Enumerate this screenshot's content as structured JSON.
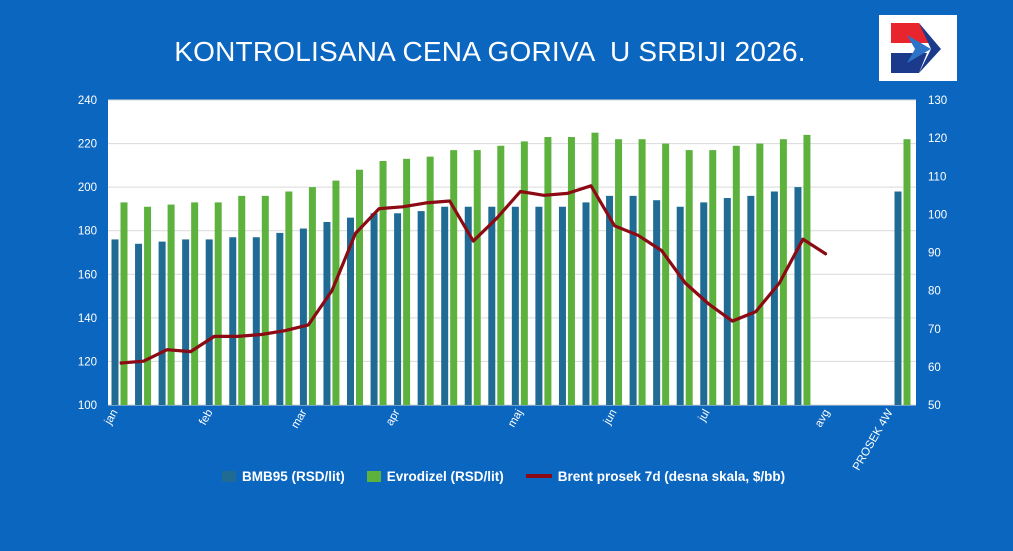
{
  "title": "KONTROLISANA CENA GORIVA  U SRBIJI 2026.",
  "logo": {
    "icon": "red-blue-arrow-logo-icon",
    "colors": [
      "#e8242d",
      "#1b3a8c",
      "#2d73c7"
    ]
  },
  "colors": {
    "background": "#0b66c0",
    "plot_bg": "#ffffff",
    "bmb95": "#1f6b93",
    "evrodizel": "#5cb23d",
    "brent": "#8b0a14"
  },
  "legend": [
    {
      "label": "BMB95 (RSD/lit)",
      "kind": "bar",
      "color": "#1f6b93"
    },
    {
      "label": "Evrodizel (RSD/lit)",
      "kind": "bar",
      "color": "#5cb23d"
    },
    {
      "label": "Brent prosek 7d (desna skala, $/bb)",
      "kind": "line",
      "color": "#8b0a14"
    }
  ],
  "chart_data": {
    "type": "bar",
    "title": "KONTROLISANA CENA GORIVA  U SRBIJI 2026.",
    "x_tick_labels": [
      "jan",
      "feb",
      "mar",
      "apr",
      "maj",
      "jun",
      "jul",
      "avg",
      "PROSEK 4W"
    ],
    "ylim": [
      100,
      240
    ],
    "y_ticks": [
      100,
      120,
      140,
      160,
      180,
      200,
      220,
      240
    ],
    "y2lim": [
      50,
      130
    ],
    "y2_ticks": [
      50,
      60,
      70,
      80,
      90,
      100,
      110,
      120,
      130
    ],
    "grid": "horizontal",
    "legend_position": "bottom",
    "series": [
      {
        "name": "BMB95 (RSD/lit)",
        "type": "bar",
        "axis": "left",
        "values": [
          176,
          174,
          175,
          176,
          176,
          177,
          177,
          179,
          181,
          184,
          186,
          188,
          188,
          189,
          191,
          191,
          191,
          191,
          191,
          191,
          193,
          196,
          196,
          194,
          191,
          193,
          195,
          196,
          198,
          200
        ]
      },
      {
        "name": "Evrodizel (RSD/lit)",
        "type": "bar",
        "axis": "left",
        "values": [
          193,
          191,
          192,
          193,
          193,
          196,
          196,
          198,
          200,
          203,
          208,
          212,
          213,
          214,
          217,
          217,
          219,
          221,
          223,
          223,
          225,
          222,
          222,
          220,
          217,
          217,
          219,
          220,
          222,
          224
        ]
      },
      {
        "name": "Brent prosek 7d (desna skala, $/bb)",
        "type": "line",
        "axis": "right",
        "values": [
          61,
          61.5,
          64.5,
          64,
          68,
          68,
          68.5,
          69.5,
          71,
          80,
          95,
          101.5,
          102,
          103,
          103.5,
          93,
          99,
          106,
          105,
          105.5,
          107.5,
          97,
          94.5,
          90.5,
          82,
          76.5,
          72,
          74.5,
          82,
          93.5,
          89.5
        ]
      }
    ],
    "prosek_4w": {
      "label": "PROSEK 4W",
      "BMB95 (RSD/lit)": 198,
      "Evrodizel (RSD/lit)": 222
    }
  }
}
